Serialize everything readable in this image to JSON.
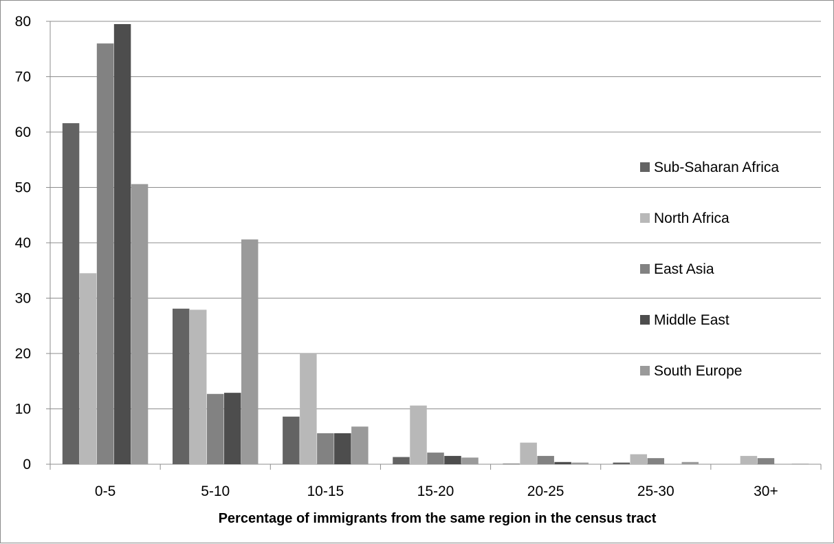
{
  "chart_data": {
    "type": "bar",
    "title": "",
    "xlabel": "Percentage of immigrants from the same region in the census tract",
    "ylabel": "",
    "ylim": [
      0,
      80
    ],
    "yticks": [
      0,
      10,
      20,
      30,
      40,
      50,
      60,
      70,
      80
    ],
    "grid": true,
    "legend_position": "right",
    "categories": [
      "0-5",
      "5-10",
      "10-15",
      "15-20",
      "20-25",
      "25-30",
      "30+"
    ],
    "series": [
      {
        "name": "Sub-Saharan Africa",
        "color": "#636363",
        "values": [
          61.6,
          28.1,
          8.6,
          1.3,
          0.1,
          0.3,
          0.0
        ]
      },
      {
        "name": "North Africa",
        "color": "#b8b8b8",
        "values": [
          34.5,
          27.9,
          19.9,
          10.6,
          3.9,
          1.8,
          1.5
        ]
      },
      {
        "name": "East Asia",
        "color": "#828282",
        "values": [
          76.0,
          12.7,
          5.6,
          2.1,
          1.5,
          1.1,
          1.1
        ]
      },
      {
        "name": "Middle East",
        "color": "#4d4d4d",
        "values": [
          79.5,
          12.9,
          5.6,
          1.5,
          0.4,
          0.0,
          0.0
        ]
      },
      {
        "name": "South Europe",
        "color": "#9a9a9a",
        "values": [
          50.6,
          40.6,
          6.8,
          1.2,
          0.3,
          0.4,
          0.1
        ]
      }
    ]
  }
}
